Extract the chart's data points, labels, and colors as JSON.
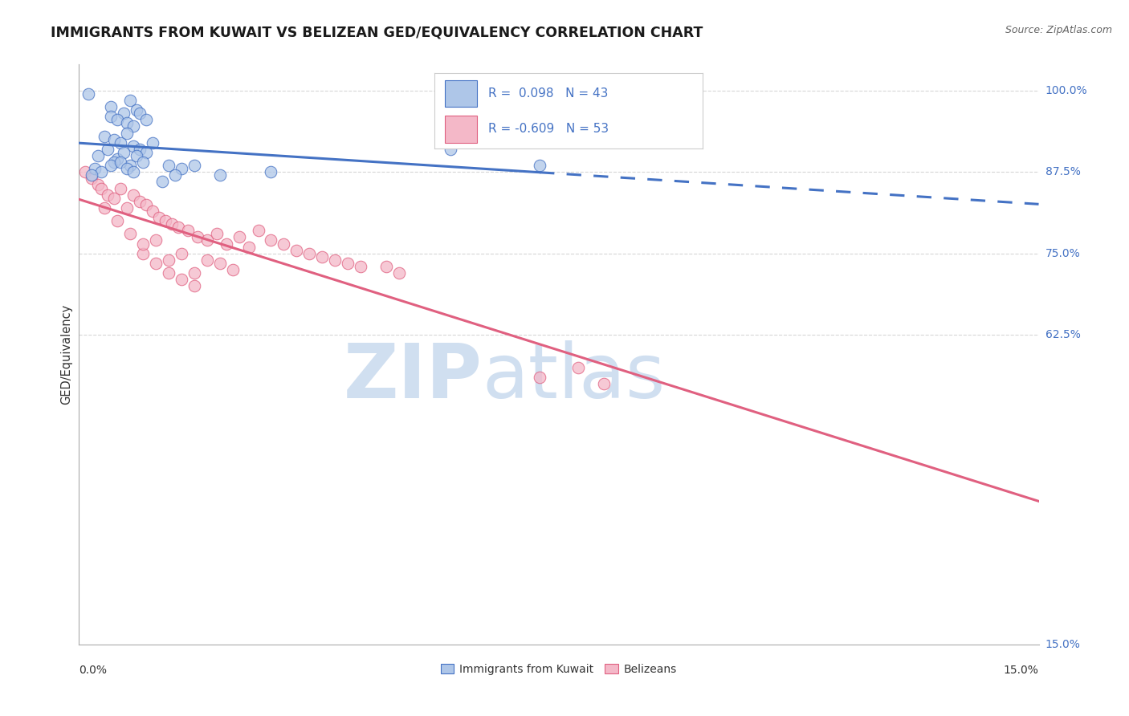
{
  "title": "IMMIGRANTS FROM KUWAIT VS BELIZEAN GED/EQUIVALENCY CORRELATION CHART",
  "source": "Source: ZipAtlas.com",
  "ylabel": "GED/Equivalency",
  "yticks": [
    100.0,
    87.5,
    75.0,
    62.5,
    15.0
  ],
  "xmin": 0.0,
  "xmax": 15.0,
  "ymin": 15.0,
  "ymax": 104.0,
  "R_blue": 0.098,
  "N_blue": 43,
  "R_pink": -0.609,
  "N_pink": 53,
  "legend_label_blue": "Immigrants from Kuwait",
  "legend_label_pink": "Belizeans",
  "blue_color": "#aec6e8",
  "blue_edge_color": "#4472c4",
  "blue_line_color": "#4472c4",
  "pink_color": "#f4b8c8",
  "pink_edge_color": "#e06080",
  "pink_line_color": "#e06080",
  "watermark_zip": "ZIP",
  "watermark_atlas": "atlas",
  "watermark_color": "#d0dff0",
  "background_color": "#ffffff",
  "grid_color": "#cccccc",
  "blue_scatter_x": [
    0.15,
    0.5,
    0.7,
    0.8,
    0.9,
    0.5,
    0.6,
    0.75,
    0.85,
    0.95,
    1.05,
    0.4,
    0.55,
    0.65,
    0.75,
    0.85,
    0.95,
    1.05,
    1.15,
    0.3,
    0.45,
    0.6,
    0.7,
    0.8,
    0.9,
    1.0,
    1.4,
    1.6,
    1.8,
    2.2,
    3.0,
    0.25,
    0.35,
    0.55,
    0.2,
    0.5,
    0.65,
    0.75,
    0.85,
    5.8,
    7.2,
    1.3,
    1.5
  ],
  "blue_scatter_y": [
    99.5,
    97.5,
    96.5,
    98.5,
    97.0,
    96.0,
    95.5,
    95.0,
    94.5,
    96.5,
    95.5,
    93.0,
    92.5,
    92.0,
    93.5,
    91.5,
    91.0,
    90.5,
    92.0,
    90.0,
    91.0,
    89.5,
    90.5,
    88.5,
    90.0,
    89.0,
    88.5,
    88.0,
    88.5,
    87.0,
    87.5,
    88.0,
    87.5,
    89.0,
    87.0,
    88.5,
    89.0,
    88.0,
    87.5,
    91.0,
    88.5,
    86.0,
    87.0
  ],
  "pink_scatter_x": [
    0.1,
    0.2,
    0.3,
    0.35,
    0.45,
    0.55,
    0.65,
    0.75,
    0.85,
    0.95,
    1.05,
    1.15,
    1.25,
    1.35,
    1.45,
    1.55,
    1.7,
    1.85,
    2.0,
    2.15,
    2.3,
    2.5,
    2.65,
    2.8,
    3.0,
    3.2,
    3.4,
    3.6,
    3.8,
    4.0,
    4.2,
    4.4,
    1.0,
    1.2,
    1.4,
    1.6,
    1.8,
    2.0,
    2.2,
    2.4,
    0.4,
    0.6,
    0.8,
    1.0,
    1.2,
    1.4,
    1.6,
    1.8,
    4.8,
    5.0,
    7.2,
    7.8,
    8.2
  ],
  "pink_scatter_y": [
    87.5,
    86.5,
    85.5,
    85.0,
    84.0,
    83.5,
    85.0,
    82.0,
    84.0,
    83.0,
    82.5,
    81.5,
    80.5,
    80.0,
    79.5,
    79.0,
    78.5,
    77.5,
    77.0,
    78.0,
    76.5,
    77.5,
    76.0,
    78.5,
    77.0,
    76.5,
    75.5,
    75.0,
    74.5,
    74.0,
    73.5,
    73.0,
    75.0,
    73.5,
    72.0,
    75.0,
    72.0,
    74.0,
    73.5,
    72.5,
    82.0,
    80.0,
    78.0,
    76.5,
    77.0,
    74.0,
    71.0,
    70.0,
    73.0,
    72.0,
    56.0,
    57.5,
    55.0
  ]
}
